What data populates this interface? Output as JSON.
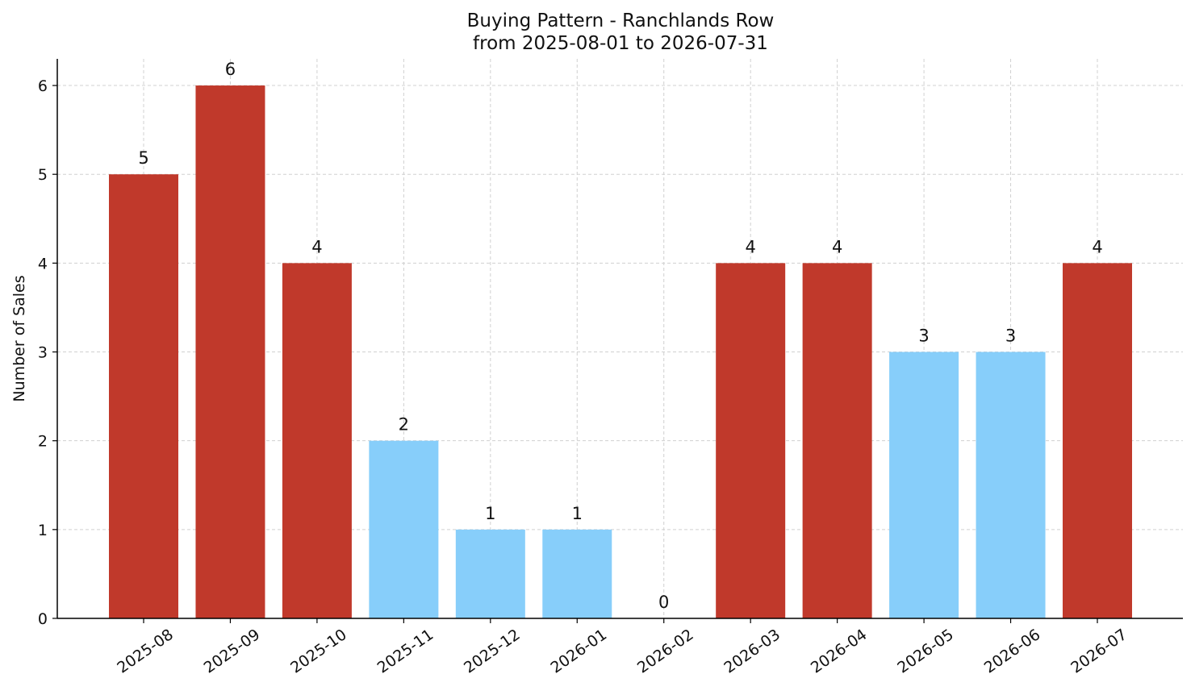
{
  "chart_data": {
    "type": "bar",
    "title": "Buying Pattern - Ranchlands Row",
    "subtitle": "from 2025-08-01 to 2026-07-31",
    "xlabel": "",
    "ylabel": "Number of Sales",
    "categories": [
      "2025-08",
      "2025-09",
      "2025-10",
      "2025-11",
      "2025-12",
      "2026-01",
      "2026-02",
      "2026-03",
      "2026-04",
      "2026-05",
      "2026-06",
      "2026-07"
    ],
    "values": [
      5,
      6,
      4,
      2,
      1,
      1,
      0,
      4,
      4,
      3,
      3,
      4
    ],
    "bar_colors": [
      "#c0392b",
      "#c0392b",
      "#c0392b",
      "#87cefa",
      "#87cefa",
      "#87cefa",
      "#87cefa",
      "#c0392b",
      "#c0392b",
      "#87cefa",
      "#87cefa",
      "#c0392b"
    ],
    "ylim": [
      0,
      6.3
    ],
    "yticks": [
      0,
      1,
      2,
      3,
      4,
      5,
      6
    ],
    "grid": true,
    "data_labels": true,
    "colors": {
      "high": "#c0392b",
      "low": "#87cefa",
      "grid": "#d0d0d0",
      "axis": "#000000"
    }
  }
}
